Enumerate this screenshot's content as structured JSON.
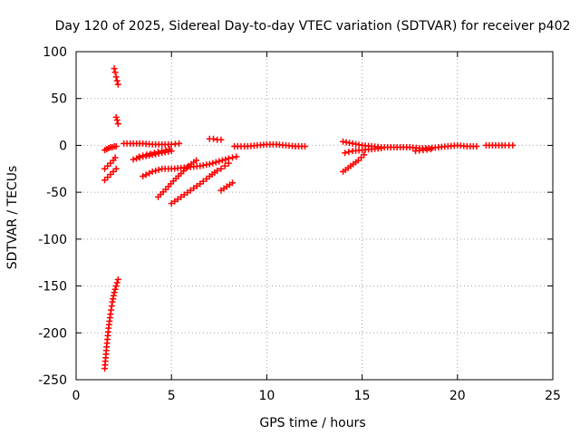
{
  "chart_data": {
    "type": "scatter",
    "title": "Day 120 of 2025, Sidereal Day-to-day VTEC variation (SDTVAR) for receiver p402",
    "xlabel": "GPS time / hours",
    "ylabel": "SDTVAR / TECUs",
    "xlim": [
      0,
      25
    ],
    "ylim": [
      -250,
      100
    ],
    "xticks": [
      0,
      5,
      10,
      15,
      20,
      25
    ],
    "yticks": [
      -250,
      -200,
      -150,
      -100,
      -50,
      0,
      50,
      100
    ],
    "xtick_labels": [
      "0",
      "5",
      "10",
      "15",
      "20",
      "25"
    ],
    "ytick_labels": [
      "-250",
      "-200",
      "-150",
      "-100",
      "-50",
      "0",
      "50",
      "100"
    ],
    "grid": true,
    "marker": "plus",
    "color": "#ff0000",
    "segments": [
      {
        "x": [
          1.5,
          1.6,
          1.7,
          1.8,
          1.9,
          2.0,
          2.1,
          2.2
        ],
        "y": [
          -238,
          -215,
          -195,
          -180,
          -167,
          -157,
          -150,
          -143
        ]
      },
      {
        "x": [
          2.0,
          2.05,
          2.1,
          2.15,
          2.2
        ],
        "y": [
          82,
          78,
          73,
          69,
          65
        ]
      },
      {
        "x": [
          2.1,
          2.15,
          2.2
        ],
        "y": [
          30,
          27,
          23
        ]
      },
      {
        "x": [
          1.5,
          1.6,
          1.7,
          1.8,
          1.9,
          2.0,
          2.1
        ],
        "y": [
          -5,
          -4,
          -3,
          -2,
          -2,
          -1,
          -1
        ]
      },
      {
        "x": [
          1.5,
          1.65,
          1.8,
          1.95,
          2.05
        ],
        "y": [
          -25,
          -22,
          -19,
          -16,
          -13
        ]
      },
      {
        "x": [
          1.5,
          1.65,
          1.8,
          1.95,
          2.1
        ],
        "y": [
          -37,
          -34,
          -31,
          -28,
          -25
        ]
      },
      {
        "x": [
          2.5,
          3.0,
          3.5,
          4.0,
          4.5,
          5.0,
          5.4
        ],
        "y": [
          2,
          2,
          2,
          1,
          1,
          1,
          2
        ]
      },
      {
        "x": [
          3.3,
          3.7,
          4.1,
          4.5,
          4.9
        ],
        "y": [
          -12,
          -10,
          -8,
          -6,
          -4
        ]
      },
      {
        "x": [
          3.0,
          3.5,
          4.0,
          4.5,
          5.0
        ],
        "y": [
          -15,
          -12,
          -10,
          -8,
          -6
        ]
      },
      {
        "x": [
          3.5,
          4.0,
          4.5,
          5.0,
          5.5,
          6.0,
          6.5,
          7.0,
          7.5,
          8.0,
          8.4
        ],
        "y": [
          -33,
          -28,
          -25,
          -25,
          -24,
          -23,
          -22,
          -20,
          -17,
          -14,
          -12
        ]
      },
      {
        "x": [
          4.3,
          4.7,
          5.1,
          5.5,
          5.9,
          6.3
        ],
        "y": [
          -55,
          -47,
          -38,
          -30,
          -22,
          -16
        ]
      },
      {
        "x": [
          5.0,
          5.5,
          6.0,
          6.5,
          7.0,
          7.4
        ],
        "y": [
          -62,
          -55,
          -48,
          -41,
          -33,
          -27
        ]
      },
      {
        "x": [
          7.0,
          7.2,
          7.4,
          7.6
        ],
        "y": [
          7,
          7,
          6,
          6
        ]
      },
      {
        "x": [
          7.6,
          7.8,
          8.0
        ],
        "y": [
          -25,
          -22,
          -19
        ]
      },
      {
        "x": [
          7.6,
          7.9,
          8.2
        ],
        "y": [
          -48,
          -44,
          -40
        ]
      },
      {
        "x": [
          8.3,
          9.0,
          9.5,
          10.0,
          10.5,
          11.0,
          11.5,
          12.0
        ],
        "y": [
          -1,
          -1,
          0,
          1,
          1,
          0,
          -1,
          -1
        ]
      },
      {
        "x": [
          14.0,
          14.4,
          14.8,
          15.1
        ],
        "y": [
          -28,
          -22,
          -16,
          -10
        ]
      },
      {
        "x": [
          14.1,
          14.5,
          15.0,
          15.5,
          16.0
        ],
        "y": [
          -8,
          -6,
          -5,
          -4,
          -3
        ]
      },
      {
        "x": [
          14.0,
          14.5,
          15.0,
          15.5,
          16.0,
          16.5,
          17.0,
          17.5,
          18.0,
          18.5,
          19.0,
          19.5,
          20.0,
          20.5,
          21.0
        ],
        "y": [
          4,
          2,
          0,
          -1,
          -2,
          -2,
          -2,
          -2,
          -3,
          -3,
          -2,
          -1,
          0,
          -1,
          -1
        ]
      },
      {
        "x": [
          17.8,
          18.2,
          18.6
        ],
        "y": [
          -6,
          -5,
          -4
        ]
      },
      {
        "x": [
          21.5,
          22.0,
          22.5,
          22.9
        ],
        "y": [
          0,
          0,
          0,
          0
        ]
      }
    ]
  }
}
